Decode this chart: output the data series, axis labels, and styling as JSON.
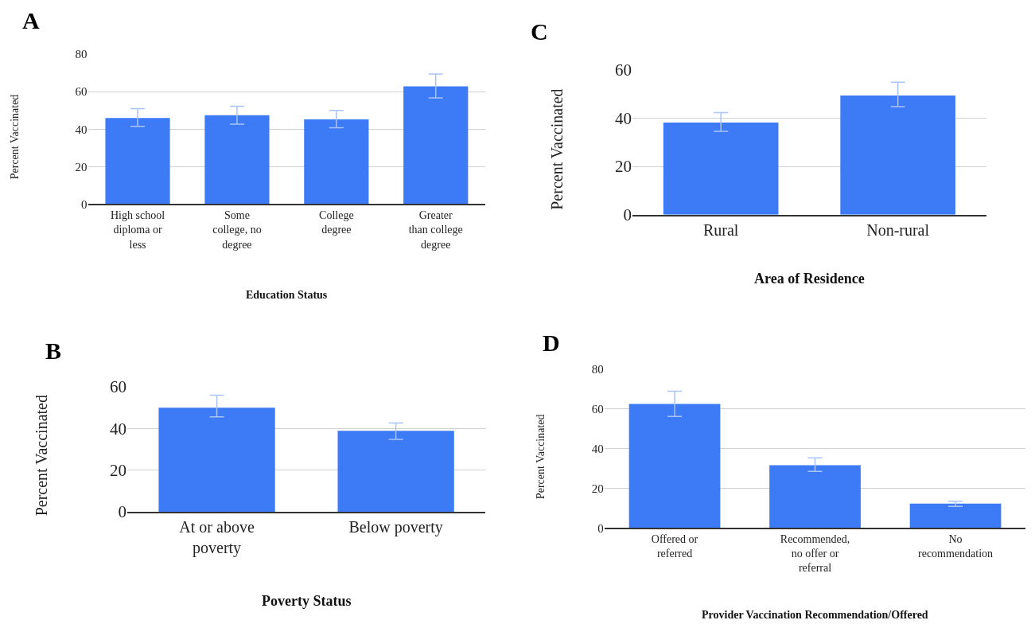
{
  "chart_data": [
    {
      "type": "bar",
      "title": "A",
      "xlabel": "Education Status",
      "ylabel": "Percent Vaccinated",
      "categories": [
        "High school\ndiploma or\nless",
        "Some\ncollege, no\ndegree",
        "College\ndegree",
        "Greater\nthan college\ndegree"
      ],
      "values": [
        46.0,
        47.5,
        45.2,
        62.9
      ],
      "errors": [
        [
          41.5,
          51.0
        ],
        [
          42.7,
          52.2
        ],
        [
          40.8,
          50.0
        ],
        [
          56.7,
          69.5
        ]
      ],
      "color": "#3d7af5",
      "ylim": [
        0,
        80
      ],
      "yticks": [
        0,
        20,
        40,
        60,
        80
      ],
      "grid": "y"
    },
    {
      "type": "bar",
      "title": "C",
      "xlabel": "Area of Residence",
      "ylabel": "Percent Vaccinated",
      "categories": [
        "Rural",
        "Non-rural"
      ],
      "values": [
        38.2,
        49.4
      ],
      "errors": [
        [
          34.5,
          42.3
        ],
        [
          44.8,
          54.9
        ]
      ],
      "color": "#3d7af5",
      "ylim": [
        0,
        60
      ],
      "yticks": [
        0,
        20,
        40,
        60
      ],
      "grid": "y"
    },
    {
      "type": "bar",
      "title": "B",
      "xlabel": "Poverty Status",
      "ylabel": "Percent Vaccinated",
      "categories": [
        "At or above\npoverty",
        "Below poverty"
      ],
      "values": [
        50.0,
        38.9
      ],
      "errors": [
        [
          45.6,
          56.0
        ],
        [
          34.8,
          42.6
        ]
      ],
      "color": "#3d7af5",
      "ylim": [
        0,
        60
      ],
      "yticks": [
        0,
        20,
        40,
        60
      ],
      "grid": "y"
    },
    {
      "type": "bar",
      "title": "D",
      "xlabel": "Provider Vaccination Recommendation/Offered",
      "ylabel": "Percent Vaccinated",
      "categories": [
        "Offered or\nreferred",
        "Recommended,\nno offer or\nreferral",
        "No\nrecommendation"
      ],
      "values": [
        62.3,
        31.5,
        12.2
      ],
      "errors": [
        [
          56.0,
          68.7
        ],
        [
          28.4,
          35.2
        ],
        [
          10.8,
          13.4
        ]
      ],
      "color": "#3d7af5",
      "ylim": [
        0,
        80
      ],
      "yticks": [
        0,
        20,
        40,
        60,
        80
      ],
      "grid": "y"
    }
  ]
}
